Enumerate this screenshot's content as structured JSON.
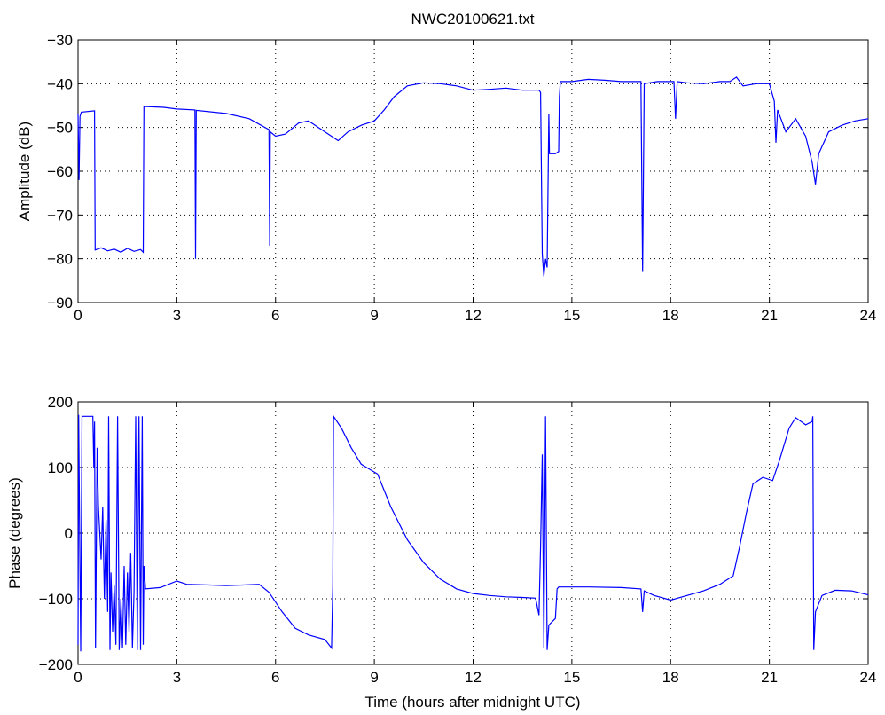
{
  "title": "NWC20100621.txt",
  "colors": {
    "line": "#0000ff",
    "axis": "#000000",
    "grid": "#000000",
    "background": "#ffffff"
  },
  "chart_data": [
    {
      "type": "line",
      "title": "NWC20100621.txt",
      "xlabel": "",
      "ylabel": "Amplitude (dB)",
      "xlim": [
        0,
        24
      ],
      "ylim": [
        -90,
        -30
      ],
      "xticks": [
        "0",
        "3",
        "6",
        "9",
        "12",
        "15",
        "18",
        "21",
        "24"
      ],
      "yticks": [
        "−90",
        "−80",
        "−70",
        "−60",
        "−50",
        "−40",
        "−30"
      ],
      "grid": true,
      "series": [
        {
          "points": [
            [
              0,
              -47
            ],
            [
              0.03,
              -62
            ],
            [
              0.06,
              -47.5
            ],
            [
              0.1,
              -46.5
            ],
            [
              0.5,
              -46.2
            ],
            [
              0.52,
              -78
            ],
            [
              0.7,
              -77.5
            ],
            [
              0.9,
              -78.2
            ],
            [
              1.1,
              -77.8
            ],
            [
              1.3,
              -78.5
            ],
            [
              1.5,
              -77.6
            ],
            [
              1.7,
              -78.3
            ],
            [
              1.9,
              -77.9
            ],
            [
              1.98,
              -78.5
            ],
            [
              2.0,
              -45.2
            ],
            [
              2.6,
              -45.4
            ],
            [
              3.0,
              -45.8
            ],
            [
              3.55,
              -46
            ],
            [
              3.57,
              -80
            ],
            [
              3.59,
              -46.1
            ],
            [
              4.5,
              -46.8
            ],
            [
              5.2,
              -48
            ],
            [
              5.8,
              -50.5
            ],
            [
              5.82,
              -77
            ],
            [
              5.84,
              -51
            ],
            [
              6.0,
              -52
            ],
            [
              6.3,
              -51.5
            ],
            [
              6.7,
              -49
            ],
            [
              7.0,
              -48.5
            ],
            [
              7.5,
              -51
            ],
            [
              7.9,
              -53
            ],
            [
              8.2,
              -51
            ],
            [
              8.6,
              -49.5
            ],
            [
              9.0,
              -48.5
            ],
            [
              9.3,
              -46
            ],
            [
              9.6,
              -43
            ],
            [
              10.0,
              -40.5
            ],
            [
              10.5,
              -39.8
            ],
            [
              11.0,
              -40
            ],
            [
              11.5,
              -40.5
            ],
            [
              12.0,
              -41.5
            ],
            [
              12.5,
              -41.3
            ],
            [
              13.0,
              -41
            ],
            [
              13.5,
              -41.5
            ],
            [
              14.0,
              -41.5
            ],
            [
              14.05,
              -42
            ],
            [
              14.1,
              -79
            ],
            [
              14.15,
              -84
            ],
            [
              14.2,
              -80
            ],
            [
              14.25,
              -82
            ],
            [
              14.3,
              -47
            ],
            [
              14.32,
              -56
            ],
            [
              14.5,
              -56
            ],
            [
              14.6,
              -55.5
            ],
            [
              14.62,
              -43
            ],
            [
              14.65,
              -39.5
            ],
            [
              15.0,
              -39.5
            ],
            [
              15.5,
              -39
            ],
            [
              16.0,
              -39.2
            ],
            [
              16.5,
              -39.5
            ],
            [
              17.1,
              -39.5
            ],
            [
              17.15,
              -83
            ],
            [
              17.2,
              -40
            ],
            [
              17.6,
              -39.5
            ],
            [
              18.1,
              -39.5
            ],
            [
              18.15,
              -48
            ],
            [
              18.2,
              -39.5
            ],
            [
              18.5,
              -39.8
            ],
            [
              19.0,
              -40
            ],
            [
              19.5,
              -39.5
            ],
            [
              19.8,
              -39.5
            ],
            [
              20.0,
              -38.5
            ],
            [
              20.2,
              -40.5
            ],
            [
              20.6,
              -40
            ],
            [
              21.0,
              -40
            ],
            [
              21.15,
              -44
            ],
            [
              21.2,
              -53.5
            ],
            [
              21.25,
              -46
            ],
            [
              21.5,
              -51
            ],
            [
              21.8,
              -48
            ],
            [
              22.1,
              -52
            ],
            [
              22.3,
              -58
            ],
            [
              22.4,
              -63
            ],
            [
              22.5,
              -56
            ],
            [
              22.8,
              -51
            ],
            [
              23.2,
              -49.5
            ],
            [
              23.6,
              -48.5
            ],
            [
              24.0,
              -48
            ]
          ]
        }
      ]
    },
    {
      "type": "line",
      "title": "",
      "xlabel": "Time (hours after midnight UTC)",
      "ylabel": "Phase (degrees)",
      "xlim": [
        0,
        24
      ],
      "ylim": [
        -200,
        200
      ],
      "xticks": [
        "0",
        "3",
        "6",
        "9",
        "12",
        "15",
        "18",
        "21",
        "24"
      ],
      "yticks": [
        "−200",
        "−100",
        "0",
        "100",
        "200"
      ],
      "grid": true,
      "series": [
        {
          "points": [
            [
              0,
              -170
            ],
            [
              0.02,
              180
            ],
            [
              0.08,
              -180
            ],
            [
              0.12,
              178
            ],
            [
              0.45,
              178
            ],
            [
              0.48,
              100
            ],
            [
              0.5,
              170
            ],
            [
              0.53,
              -175
            ],
            [
              0.58,
              130
            ],
            [
              0.62,
              40
            ],
            [
              0.7,
              -40
            ],
            [
              0.75,
              40
            ],
            [
              0.8,
              -100
            ],
            [
              0.85,
              20
            ],
            [
              0.9,
              -120
            ],
            [
              0.93,
              178
            ],
            [
              0.97,
              -178
            ],
            [
              1.0,
              -60
            ],
            [
              1.05,
              -150
            ],
            [
              1.1,
              -80
            ],
            [
              1.15,
              -170
            ],
            [
              1.2,
              178
            ],
            [
              1.25,
              -178
            ],
            [
              1.3,
              -100
            ],
            [
              1.35,
              -175
            ],
            [
              1.4,
              -50
            ],
            [
              1.45,
              -170
            ],
            [
              1.5,
              -60
            ],
            [
              1.55,
              -150
            ],
            [
              1.6,
              -30
            ],
            [
              1.65,
              -175
            ],
            [
              1.7,
              -90
            ],
            [
              1.75,
              178
            ],
            [
              1.8,
              -178
            ],
            [
              1.85,
              178
            ],
            [
              1.9,
              -178
            ],
            [
              1.95,
              178
            ],
            [
              1.98,
              -170
            ],
            [
              2.0,
              -50
            ],
            [
              2.05,
              -85
            ],
            [
              2.5,
              -83
            ],
            [
              3.0,
              -73
            ],
            [
              3.3,
              -78
            ],
            [
              4.0,
              -79
            ],
            [
              4.5,
              -80
            ],
            [
              5.0,
              -79
            ],
            [
              5.5,
              -78
            ],
            [
              5.8,
              -90
            ],
            [
              6.2,
              -120
            ],
            [
              6.6,
              -145
            ],
            [
              7.0,
              -155
            ],
            [
              7.5,
              -162
            ],
            [
              7.7,
              -175
            ],
            [
              7.74,
              -80
            ],
            [
              7.76,
              178
            ],
            [
              8.0,
              160
            ],
            [
              8.3,
              130
            ],
            [
              8.6,
              105
            ],
            [
              8.9,
              96
            ],
            [
              9.1,
              90
            ],
            [
              9.5,
              40
            ],
            [
              10.0,
              -10
            ],
            [
              10.5,
              -45
            ],
            [
              11.0,
              -70
            ],
            [
              11.5,
              -85
            ],
            [
              12.0,
              -92
            ],
            [
              12.5,
              -95
            ],
            [
              13.0,
              -97
            ],
            [
              13.5,
              -98
            ],
            [
              13.9,
              -99
            ],
            [
              14.0,
              -125
            ],
            [
              14.05,
              -20
            ],
            [
              14.1,
              120
            ],
            [
              14.15,
              -175
            ],
            [
              14.2,
              178
            ],
            [
              14.25,
              -178
            ],
            [
              14.3,
              -140
            ],
            [
              14.5,
              -130
            ],
            [
              14.55,
              -85
            ],
            [
              14.6,
              -82
            ],
            [
              15.5,
              -82
            ],
            [
              16.5,
              -83
            ],
            [
              17.1,
              -85
            ],
            [
              17.15,
              -120
            ],
            [
              17.2,
              -88
            ],
            [
              17.5,
              -95
            ],
            [
              18.0,
              -102
            ],
            [
              18.5,
              -95
            ],
            [
              19.0,
              -88
            ],
            [
              19.5,
              -78
            ],
            [
              19.9,
              -65
            ],
            [
              20.1,
              -20
            ],
            [
              20.3,
              30
            ],
            [
              20.5,
              75
            ],
            [
              20.8,
              85
            ],
            [
              21.1,
              80
            ],
            [
              21.3,
              110
            ],
            [
              21.6,
              160
            ],
            [
              21.8,
              176
            ],
            [
              22.1,
              165
            ],
            [
              22.3,
              170
            ],
            [
              22.32,
              178
            ],
            [
              22.35,
              -178
            ],
            [
              22.4,
              -120
            ],
            [
              22.6,
              -95
            ],
            [
              23.0,
              -87
            ],
            [
              23.5,
              -88
            ],
            [
              24.0,
              -94
            ]
          ]
        }
      ]
    }
  ]
}
